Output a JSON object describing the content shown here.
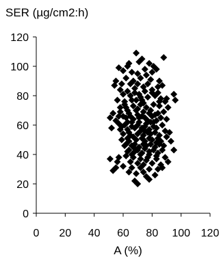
{
  "chart_data": {
    "type": "scatter",
    "title": "",
    "ylabel": "SER (µg/cm2:h)",
    "xlabel": "A (%)",
    "xlim": [
      0,
      120
    ],
    "ylim": [
      0,
      120
    ],
    "xticks": [
      "0",
      "20",
      "40",
      "60",
      "80",
      "100",
      "120"
    ],
    "yticks": [
      "0",
      "20",
      "40",
      "60",
      "80",
      "100",
      "120"
    ],
    "grid": false,
    "marker": "diamond",
    "marker_color": "#000000",
    "series": [
      {
        "points": [
          [
            69,
            109
          ],
          [
            73,
            105
          ],
          [
            88,
            106
          ],
          [
            64,
            102
          ],
          [
            71,
            103
          ],
          [
            63,
            100
          ],
          [
            57,
            99
          ],
          [
            60,
            97
          ],
          [
            66,
            96
          ],
          [
            75,
            98
          ],
          [
            78,
            102
          ],
          [
            81,
            100
          ],
          [
            83,
            98
          ],
          [
            76,
            94
          ],
          [
            70,
            95
          ],
          [
            62,
            92
          ],
          [
            55,
            90
          ],
          [
            54,
            87
          ],
          [
            59,
            88
          ],
          [
            67,
            90
          ],
          [
            72,
            92
          ],
          [
            79,
            91
          ],
          [
            85,
            90
          ],
          [
            87,
            87
          ],
          [
            58,
            84
          ],
          [
            63,
            83
          ],
          [
            68,
            85
          ],
          [
            74,
            86
          ],
          [
            80,
            84
          ],
          [
            84,
            82
          ],
          [
            95,
            81
          ],
          [
            96,
            77
          ],
          [
            65,
            80
          ],
          [
            71,
            81
          ],
          [
            77,
            79
          ],
          [
            82,
            80
          ],
          [
            86,
            78
          ],
          [
            90,
            78
          ],
          [
            56,
            77
          ],
          [
            61,
            76
          ],
          [
            66,
            77
          ],
          [
            73,
            77
          ],
          [
            89,
            76
          ],
          [
            62,
            72
          ],
          [
            67,
            73
          ],
          [
            72,
            74
          ],
          [
            76,
            72
          ],
          [
            81,
            74
          ],
          [
            85,
            73
          ],
          [
            91,
            72
          ],
          [
            53,
            68
          ],
          [
            58,
            69
          ],
          [
            63,
            70
          ],
          [
            69,
            70
          ],
          [
            74,
            69
          ],
          [
            79,
            70
          ],
          [
            84,
            68
          ],
          [
            88,
            69
          ],
          [
            51,
            65
          ],
          [
            55,
            63
          ],
          [
            60,
            66
          ],
          [
            65,
            66
          ],
          [
            70,
            67
          ],
          [
            75,
            65
          ],
          [
            80,
            66
          ],
          [
            86,
            65
          ],
          [
            90,
            64
          ],
          [
            57,
            61
          ],
          [
            61,
            60
          ],
          [
            66,
            62
          ],
          [
            71,
            62
          ],
          [
            76,
            61
          ],
          [
            81,
            62
          ],
          [
            87,
            60
          ],
          [
            52,
            58
          ],
          [
            58,
            57
          ],
          [
            63,
            57
          ],
          [
            68,
            58
          ],
          [
            73,
            58
          ],
          [
            78,
            57
          ],
          [
            83,
            58
          ],
          [
            89,
            56
          ],
          [
            60,
            54
          ],
          [
            65,
            53
          ],
          [
            70,
            54
          ],
          [
            74,
            53
          ],
          [
            79,
            54
          ],
          [
            85,
            53
          ],
          [
            90,
            52
          ],
          [
            59,
            50
          ],
          [
            64,
            49
          ],
          [
            69,
            50
          ],
          [
            75,
            49
          ],
          [
            80,
            50
          ],
          [
            86,
            49
          ],
          [
            61,
            46
          ],
          [
            66,
            46
          ],
          [
            71,
            45
          ],
          [
            76,
            46
          ],
          [
            82,
            45
          ],
          [
            88,
            46
          ],
          [
            63,
            42
          ],
          [
            68,
            42
          ],
          [
            73,
            41
          ],
          [
            78,
            42
          ],
          [
            84,
            41
          ],
          [
            95,
            43
          ],
          [
            57,
            38
          ],
          [
            62,
            39
          ],
          [
            67,
            38
          ],
          [
            72,
            37
          ],
          [
            77,
            38
          ],
          [
            83,
            37
          ],
          [
            89,
            38
          ],
          [
            51,
            37
          ],
          [
            56,
            35
          ],
          [
            65,
            35
          ],
          [
            70,
            34
          ],
          [
            80,
            34
          ],
          [
            86,
            33
          ],
          [
            91,
            35
          ],
          [
            55,
            31
          ],
          [
            60,
            32
          ],
          [
            66,
            31
          ],
          [
            72,
            31
          ],
          [
            78,
            30
          ],
          [
            84,
            30
          ],
          [
            53,
            29
          ],
          [
            69,
            27
          ],
          [
            64,
            28
          ],
          [
            76,
            25
          ],
          [
            82,
            26
          ],
          [
            68,
            22
          ],
          [
            70,
            20
          ],
          [
            78,
            23
          ],
          [
            74,
            28
          ],
          [
            61,
            74
          ],
          [
            67,
            64
          ],
          [
            73,
            66
          ],
          [
            77,
            63
          ],
          [
            83,
            63
          ],
          [
            63,
            62
          ],
          [
            70,
            60
          ],
          [
            75,
            59
          ],
          [
            81,
            59
          ],
          [
            64,
            55
          ],
          [
            72,
            56
          ],
          [
            77,
            55
          ],
          [
            82,
            55
          ],
          [
            67,
            52
          ],
          [
            73,
            51
          ],
          [
            78,
            51
          ],
          [
            84,
            51
          ],
          [
            62,
            47
          ],
          [
            68,
            47
          ],
          [
            74,
            47
          ],
          [
            79,
            47
          ],
          [
            85,
            47
          ],
          [
            64,
            43
          ],
          [
            70,
            43
          ],
          [
            75,
            44
          ],
          [
            81,
            43
          ],
          [
            87,
            43
          ],
          [
            66,
            40
          ],
          [
            72,
            40
          ],
          [
            78,
            40
          ],
          [
            83,
            39
          ],
          [
            58,
            72
          ],
          [
            60,
            81
          ],
          [
            65,
            88
          ],
          [
            70,
            88
          ],
          [
            75,
            83
          ],
          [
            80,
            82
          ],
          [
            84,
            86
          ],
          [
            77,
            88
          ],
          [
            69,
            77
          ],
          [
            74,
            75
          ],
          [
            64,
            68
          ],
          [
            78,
            68
          ],
          [
            82,
            67
          ],
          [
            71,
            65
          ],
          [
            66,
            59
          ],
          [
            79,
            62
          ],
          [
            75,
            56
          ],
          [
            63,
            51
          ],
          [
            83,
            48
          ],
          [
            68,
            44
          ],
          [
            76,
            36
          ],
          [
            74,
            33
          ],
          [
            87,
            31
          ],
          [
            80,
            96
          ],
          [
            62,
            65
          ],
          [
            92,
            55
          ],
          [
            93,
            49
          ],
          [
            57,
            66
          ],
          [
            59,
            59
          ],
          [
            70,
            71
          ],
          [
            72,
            79
          ],
          [
            68,
            82
          ],
          [
            85,
            76
          ]
        ]
      }
    ]
  }
}
